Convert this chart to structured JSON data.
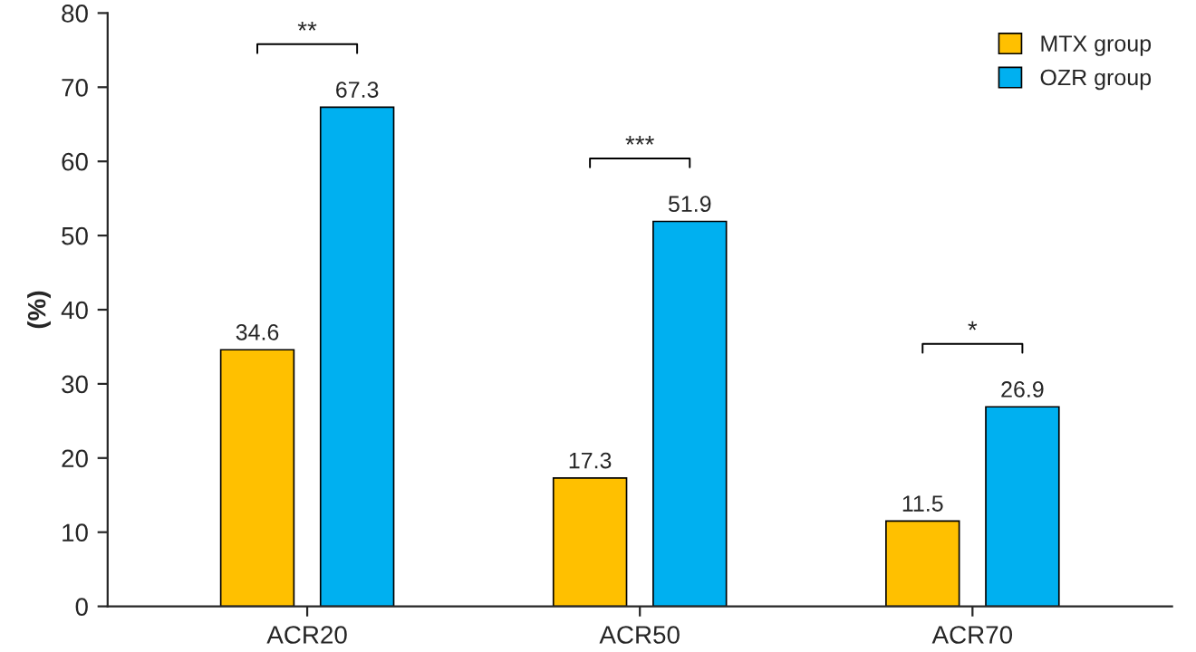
{
  "chart_data": {
    "type": "bar",
    "ylabel": "(%)",
    "categories": [
      "ACR20",
      "ACR50",
      "ACR70"
    ],
    "series": [
      {
        "name": "MTX group",
        "color": "#ffc000",
        "values": [
          34.6,
          17.3,
          11.5
        ]
      },
      {
        "name": "OZR group",
        "color": "#00b0f0",
        "values": [
          67.3,
          51.9,
          26.9
        ]
      }
    ],
    "ylim": [
      0,
      80
    ],
    "yticks": [
      0,
      10,
      20,
      30,
      40,
      50,
      60,
      70,
      80
    ],
    "data_labels": true,
    "grid": false,
    "legend": "top right",
    "annotations": [
      "**",
      "***",
      "*"
    ]
  }
}
